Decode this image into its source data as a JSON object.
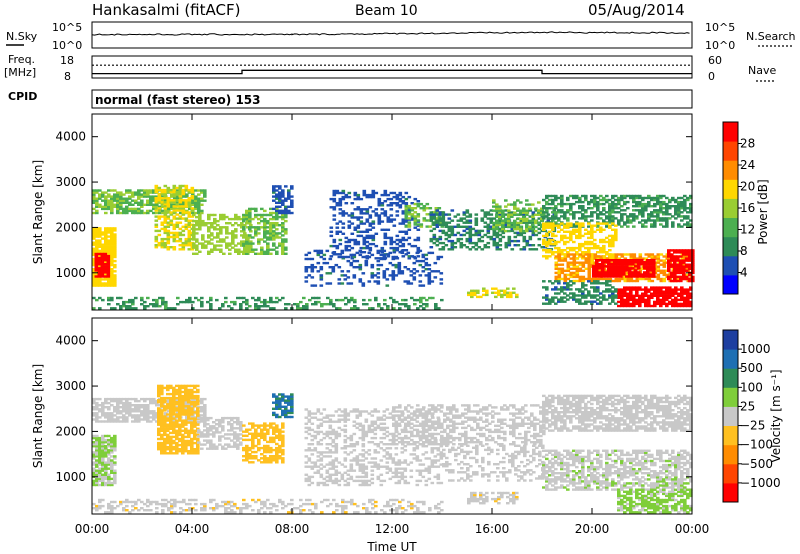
{
  "header": {
    "station": "Hankasalmi (fitACF)",
    "beam": "Beam 10",
    "date": "05/Aug/2014"
  },
  "sky_panel": {
    "left_label": "N.Sky",
    "right_label": "N.Search",
    "left_ticks": [
      "10^5",
      "10^0"
    ],
    "right_ticks": [
      "10^5",
      "10^0"
    ]
  },
  "freq_panel": {
    "left_label_line1": "Freq.",
    "left_label_line2": "[MHz]",
    "right_label": "Nave",
    "left_ticks": [
      "18",
      "8"
    ],
    "right_ticks": [
      "60",
      "0"
    ]
  },
  "cpid": {
    "label": "CPID",
    "value": "normal (fast stereo) 153"
  },
  "colors": {
    "power_scale": [
      "#0000ff",
      "#1e4fb3",
      "#2e8b57",
      "#4caf50",
      "#9acd32",
      "#ffd700",
      "#ff8c00",
      "#ff4500",
      "#ff0000"
    ],
    "velocity_scale": [
      "#ff0000",
      "#ff4500",
      "#ff8c00",
      "#ffc020",
      "#c8c8c8",
      "#7fce3a",
      "#2e8b57",
      "#1e6fb3",
      "#1e3fa0"
    ]
  },
  "chart_data": [
    {
      "type": "heatmap",
      "name": "power",
      "ylabel": "Slant Range [km]",
      "ylim": [
        180,
        4500
      ],
      "y_ticks": [
        "1000",
        "2000",
        "3000",
        "4000"
      ],
      "colorbar_label": "Power [dB]",
      "colorbar_ticks": [
        "4",
        "8",
        "12",
        "16",
        "20",
        "24",
        "28"
      ],
      "colorbar_range": [
        0,
        32
      ],
      "regions": [
        {
          "t0": 0.0,
          "t1": 0.9,
          "r0": 700,
          "r1": 2000,
          "level": 20,
          "density": 0.85
        },
        {
          "t0": 0.1,
          "t1": 0.7,
          "r0": 900,
          "r1": 1400,
          "level": 30,
          "density": 0.9
        },
        {
          "t0": 0.0,
          "t1": 4.5,
          "r0": 2300,
          "r1": 2800,
          "level": 14,
          "density": 0.7
        },
        {
          "t0": 2.5,
          "t1": 4.0,
          "r0": 1500,
          "r1": 2900,
          "level": 18,
          "density": 0.6
        },
        {
          "t0": 4.0,
          "t1": 6.3,
          "r0": 1400,
          "r1": 2300,
          "level": 16,
          "density": 0.5
        },
        {
          "t0": 6.0,
          "t1": 7.8,
          "r0": 1400,
          "r1": 2400,
          "level": 14,
          "density": 0.55
        },
        {
          "t0": 7.2,
          "t1": 8.0,
          "r0": 2300,
          "r1": 2900,
          "level": 6,
          "density": 0.6
        },
        {
          "t0": 9.5,
          "t1": 13.0,
          "r0": 1300,
          "r1": 2800,
          "level": 6,
          "density": 0.3
        },
        {
          "t0": 8.5,
          "t1": 14.0,
          "r0": 700,
          "r1": 1500,
          "level": 6,
          "density": 0.25
        },
        {
          "t0": 12.5,
          "t1": 14.0,
          "r0": 2000,
          "r1": 2500,
          "level": 14,
          "density": 0.5
        },
        {
          "t0": 13.5,
          "t1": 18.5,
          "r0": 1500,
          "r1": 2400,
          "level": 8,
          "density": 0.4
        },
        {
          "t0": 16.0,
          "t1": 18.0,
          "r0": 1900,
          "r1": 2600,
          "level": 14,
          "density": 0.5
        },
        {
          "t0": 18.0,
          "t1": 23.9,
          "r0": 2000,
          "r1": 2700,
          "level": 10,
          "density": 0.55
        },
        {
          "t0": 18.0,
          "t1": 21.0,
          "r0": 1300,
          "r1": 2100,
          "level": 20,
          "density": 0.55
        },
        {
          "t0": 18.5,
          "t1": 24.0,
          "r0": 800,
          "r1": 1400,
          "level": 22,
          "density": 0.6
        },
        {
          "t0": 20.0,
          "t1": 22.5,
          "r0": 900,
          "r1": 1300,
          "level": 30,
          "density": 0.85
        },
        {
          "t0": 23.0,
          "t1": 24.0,
          "r0": 800,
          "r1": 1500,
          "level": 30,
          "density": 0.8
        },
        {
          "t0": 21.0,
          "t1": 24.0,
          "r0": 250,
          "r1": 700,
          "level": 30,
          "density": 0.8
        },
        {
          "t0": 18.0,
          "t1": 21.0,
          "r0": 300,
          "r1": 800,
          "level": 8,
          "density": 0.5
        },
        {
          "t0": 0.0,
          "t1": 14.0,
          "r0": 200,
          "r1": 450,
          "level": 10,
          "density": 0.35
        },
        {
          "t0": 15.0,
          "t1": 17.0,
          "r0": 450,
          "r1": 650,
          "level": 18,
          "density": 0.5
        }
      ]
    },
    {
      "type": "heatmap",
      "name": "velocity",
      "ylabel": "Slant Range [km]",
      "ylim": [
        180,
        4500
      ],
      "y_ticks": [
        "1000",
        "2000",
        "3000",
        "4000"
      ],
      "colorbar_label": "Velocity [m s⁻¹]",
      "colorbar_ticks": [
        "1000",
        "500",
        "100",
        "25",
        "−25",
        "−100",
        "−500",
        "−1000"
      ],
      "colorbar_range": [
        -1200,
        1200
      ],
      "regions": [
        {
          "t0": 0.0,
          "t1": 0.9,
          "r0": 800,
          "r1": 1900,
          "level": 150,
          "density": 0.85
        },
        {
          "t0": 0.0,
          "t1": 4.5,
          "r0": 2200,
          "r1": 2700,
          "level": 0,
          "density": 0.7
        },
        {
          "t0": 2.6,
          "t1": 4.2,
          "r0": 1500,
          "r1": 3000,
          "level": -300,
          "density": 0.75
        },
        {
          "t0": 4.2,
          "t1": 6.0,
          "r0": 1600,
          "r1": 2300,
          "level": 0,
          "density": 0.5
        },
        {
          "t0": 6.0,
          "t1": 7.6,
          "r0": 1300,
          "r1": 2200,
          "level": -300,
          "density": 0.6
        },
        {
          "t0": 7.2,
          "t1": 8.0,
          "r0": 2300,
          "r1": 2800,
          "level": 700,
          "density": 0.7
        },
        {
          "t0": 8.5,
          "t1": 14.0,
          "r0": 800,
          "r1": 2500,
          "level": 0,
          "density": 0.35
        },
        {
          "t0": 12.0,
          "t1": 18.0,
          "r0": 1700,
          "r1": 2600,
          "level": 0,
          "density": 0.45
        },
        {
          "t0": 14.0,
          "t1": 18.0,
          "r0": 900,
          "r1": 1700,
          "level": 0,
          "density": 0.3
        },
        {
          "t0": 18.0,
          "t1": 24.0,
          "r0": 2000,
          "r1": 2800,
          "level": 0,
          "density": 0.7
        },
        {
          "t0": 18.0,
          "t1": 24.0,
          "r0": 700,
          "r1": 1600,
          "level": 60,
          "density": 0.6
        },
        {
          "t0": 21.0,
          "t1": 24.0,
          "r0": 200,
          "r1": 700,
          "level": 200,
          "density": 0.65
        },
        {
          "t0": 0.0,
          "t1": 14.0,
          "r0": 200,
          "r1": 500,
          "level": -60,
          "density": 0.35
        },
        {
          "t0": 15.0,
          "t1": 17.0,
          "r0": 400,
          "r1": 650,
          "level": -60,
          "density": 0.5
        }
      ]
    },
    {
      "type": "line",
      "name": "frequency",
      "x": [
        0,
        6,
        6,
        18,
        18,
        24
      ],
      "y": [
        10,
        10,
        11.5,
        11.5,
        10,
        10
      ],
      "ylim": [
        8,
        18
      ]
    },
    {
      "type": "line",
      "name": "nave",
      "x": [
        0,
        24
      ],
      "y": [
        35,
        35
      ],
      "ylim": [
        0,
        60
      ]
    },
    {
      "type": "line",
      "name": "noise_sky",
      "x": [
        0,
        8,
        18,
        24
      ],
      "y": [
        2.6,
        2.6,
        3.0,
        2.9
      ],
      "ylim": [
        0,
        5
      ]
    },
    {
      "type": "axis",
      "name": "time",
      "xlabel": "Time UT",
      "xlim": [
        0,
        24
      ],
      "x_ticks": [
        "00:00",
        "04:00",
        "08:00",
        "12:00",
        "16:00",
        "20:00",
        "00:00"
      ]
    }
  ]
}
